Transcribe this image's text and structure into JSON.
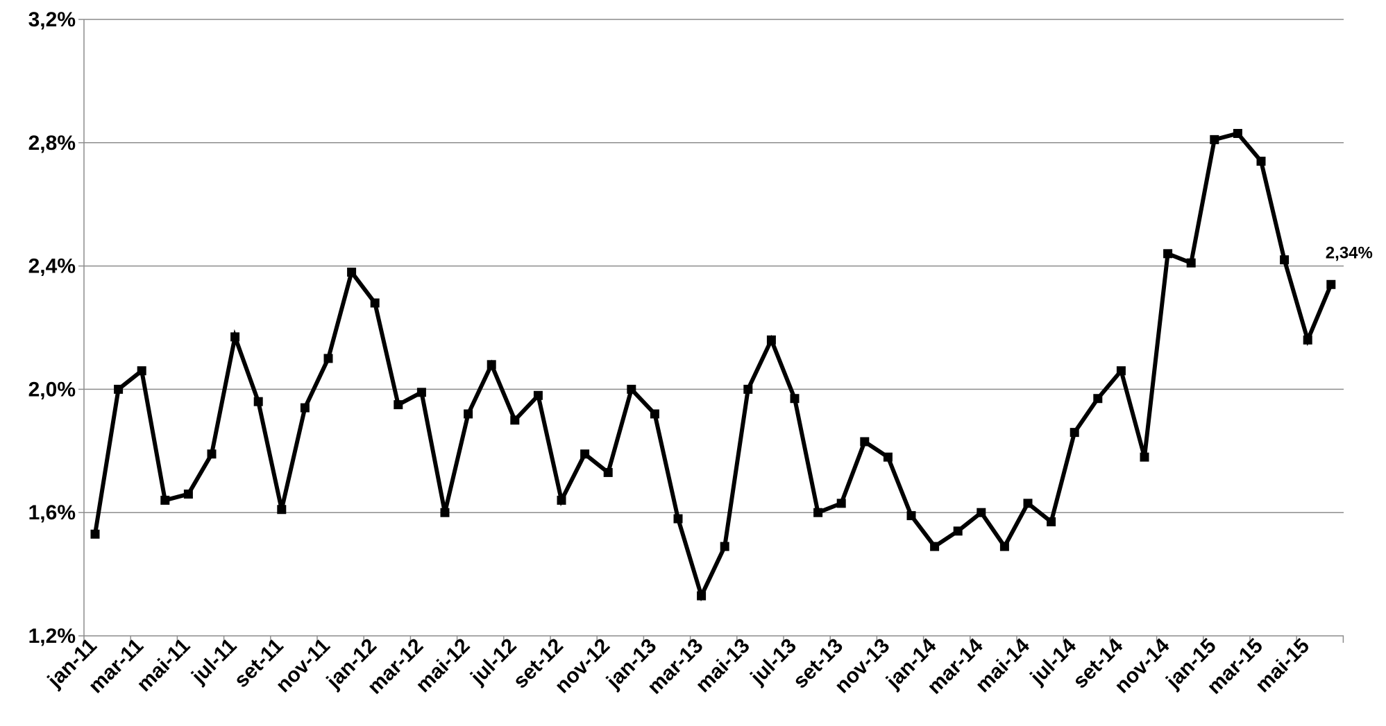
{
  "chart_data": {
    "type": "line",
    "title": "",
    "xlabel": "",
    "ylabel": "",
    "ylim": [
      1.2,
      3.2
    ],
    "yticks": [
      "1,2%",
      "1,6%",
      "2,0%",
      "2,4%",
      "2,8%",
      "3,2%"
    ],
    "ytick_values": [
      1.2,
      1.6,
      2.0,
      2.4,
      2.8,
      3.2
    ],
    "xtick_labels": [
      "jan-11",
      "mar-11",
      "mai-11",
      "jul-11",
      "set-11",
      "nov-11",
      "jan-12",
      "mar-12",
      "mai-12",
      "jul-12",
      "set-12",
      "nov-12",
      "jan-13",
      "mar-13",
      "mai-13",
      "jul-13",
      "set-13",
      "nov-13",
      "jan-14",
      "mar-14",
      "mai-14",
      "jul-14",
      "set-14",
      "nov-14",
      "jan-15",
      "mar-15",
      "mai-15"
    ],
    "grid": "horizontal",
    "legend": "none",
    "line_color": "#000000",
    "series": [
      {
        "x": [
          "jan-11",
          "fev-11",
          "mar-11",
          "abr-11",
          "mai-11",
          "jun-11",
          "jul-11",
          "ago-11",
          "set-11",
          "out-11",
          "nov-11",
          "dez-11",
          "jan-12",
          "fev-12",
          "mar-12",
          "abr-12",
          "mai-12",
          "jun-12",
          "jul-12",
          "ago-12",
          "set-12",
          "out-12",
          "nov-12",
          "dez-12",
          "jan-13",
          "fev-13",
          "mar-13",
          "abr-13",
          "mai-13",
          "jun-13",
          "jul-13",
          "ago-13",
          "set-13",
          "out-13",
          "nov-13",
          "dez-13",
          "jan-14",
          "fev-14",
          "mar-14",
          "abr-14",
          "mai-14",
          "jun-14",
          "jul-14",
          "ago-14",
          "set-14",
          "out-14",
          "nov-14",
          "dez-14",
          "jan-15",
          "fev-15",
          "mar-15",
          "abr-15",
          "mai-15",
          "jun-15"
        ],
        "values": [
          1.53,
          2.0,
          2.06,
          1.64,
          1.66,
          1.79,
          2.17,
          1.96,
          1.61,
          1.94,
          2.1,
          2.38,
          2.28,
          1.95,
          1.99,
          1.6,
          1.92,
          2.08,
          1.9,
          1.98,
          1.64,
          1.79,
          1.73,
          2.0,
          1.92,
          1.58,
          1.33,
          1.49,
          2.0,
          2.16,
          1.97,
          1.6,
          1.63,
          1.83,
          1.78,
          1.59,
          1.49,
          1.54,
          1.6,
          1.49,
          1.63,
          1.57,
          1.86,
          1.97,
          2.06,
          1.78,
          2.44,
          2.41,
          2.81,
          2.83,
          2.74,
          2.42,
          2.16,
          2.34
        ]
      }
    ],
    "annotations": [
      {
        "text": "2,34%",
        "point_index": 53
      }
    ]
  }
}
